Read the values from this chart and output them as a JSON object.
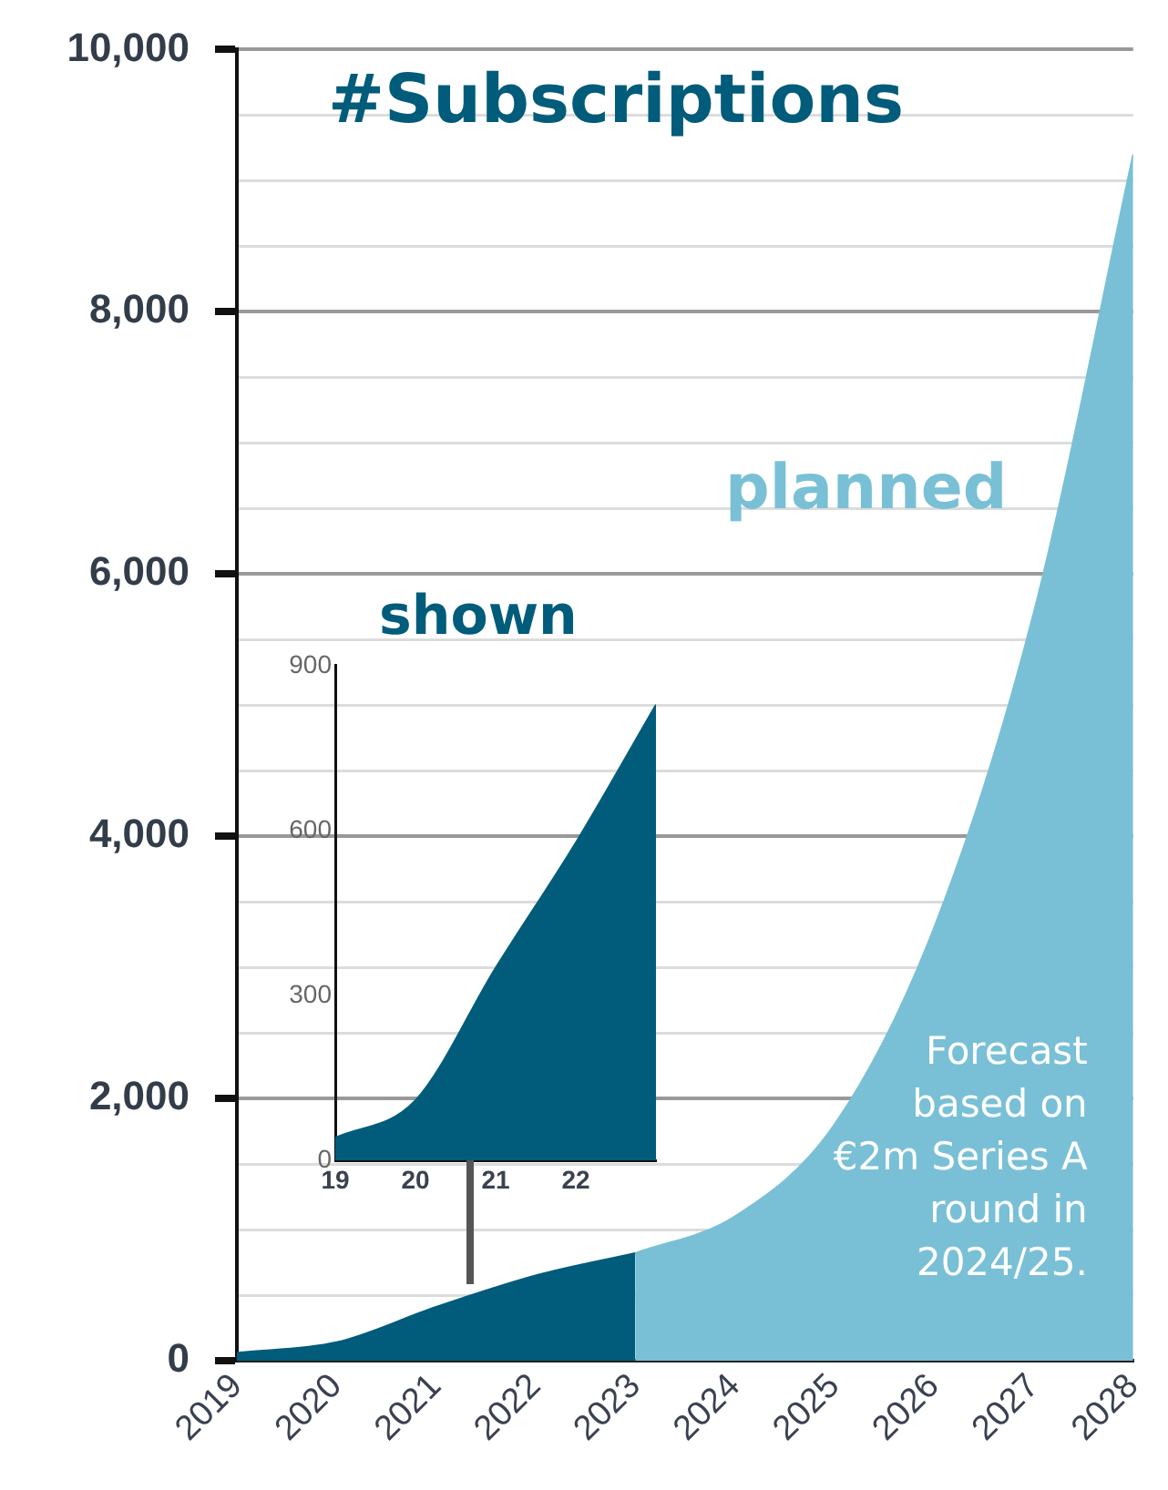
{
  "chart_data": [
    {
      "type": "area",
      "title": "#Subscriptions",
      "series": [
        {
          "color": "#005c7a",
          "x": [
            2019,
            2020,
            2021,
            2022,
            2023
          ],
          "values": [
            60,
            140,
            410,
            650,
            820
          ]
        },
        {
          "name": "planned",
          "color": "#79c0d6",
          "x": [
            2023,
            2024,
            2025,
            2026,
            2027,
            2028
          ],
          "values": [
            820,
            1100,
            1800,
            3300,
            5700,
            9200
          ]
        }
      ],
      "xlim": [
        2019,
        2028
      ],
      "xticks": [
        2019,
        2020,
        2021,
        2022,
        2023,
        2024,
        2025,
        2026,
        2027,
        2028
      ],
      "ylim": [
        0,
        10000
      ],
      "yticks": [
        0,
        {
          "value": 500,
          "label": null
        },
        {
          "value": 1000,
          "label": null
        },
        {
          "value": 1500,
          "label": null
        },
        {
          "value": 2000,
          "label": "2,000"
        },
        {
          "value": 2500,
          "label": null
        },
        {
          "value": 3000,
          "label": null
        },
        {
          "value": 3500,
          "label": null
        },
        {
          "value": 4000,
          "label": "4,000"
        },
        {
          "value": 4500,
          "label": null
        },
        {
          "value": 5000,
          "label": null
        },
        {
          "value": 5500,
          "label": null
        },
        {
          "value": 6000,
          "label": "6,000"
        },
        {
          "value": 6500,
          "label": null
        },
        {
          "value": 7000,
          "label": null
        },
        {
          "value": 7500,
          "label": null
        },
        {
          "value": 8000,
          "label": "8,000"
        },
        {
          "value": 8500,
          "label": null
        },
        {
          "value": 9000,
          "label": null
        },
        {
          "value": 9500,
          "label": null
        },
        {
          "value": 10000,
          "label": "10,000"
        }
      ],
      "grid": "y",
      "annotations": [
        "Forecast based on €2m Series A round in 2024/25."
      ]
    },
    {
      "type": "area",
      "title": "shown",
      "series": [
        {
          "color": "#005c7a",
          "x": [
            19,
            20,
            21,
            22,
            23
          ],
          "values": [
            41,
            109,
            350,
            578,
            829
          ]
        }
      ],
      "xlim": [
        19,
        23
      ],
      "xticks": [
        19,
        20,
        21,
        22
      ],
      "ylim": [
        0,
        900
      ],
      "yticks": [
        0,
        300,
        600,
        900
      ]
    }
  ]
}
